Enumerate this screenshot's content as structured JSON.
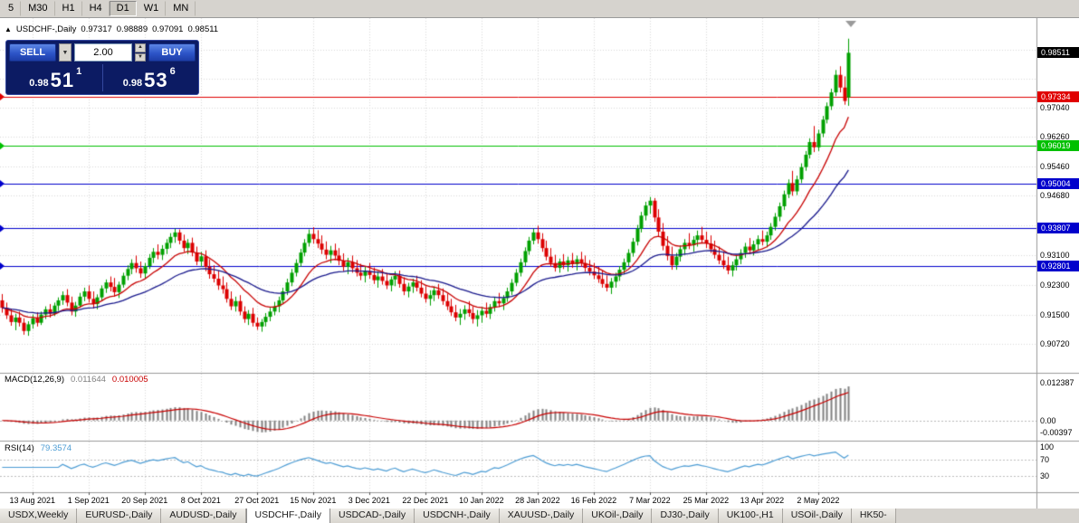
{
  "toolbar": {
    "periods": [
      "5",
      "M30",
      "H1",
      "H4",
      "D1",
      "W1",
      "MN"
    ],
    "active_period": "D1"
  },
  "chart": {
    "collapse_icon": "▲",
    "symbol_title": "USDCHF-,Daily",
    "open": "0.97317",
    "high": "0.98889",
    "low": "0.97091",
    "close": "0.98511"
  },
  "one_click": {
    "sell_label": "SELL",
    "buy_label": "BUY",
    "volume": "2.00",
    "bid": {
      "small": "0.98",
      "big": "51",
      "sup": "1"
    },
    "ask": {
      "small": "0.98",
      "big": "53",
      "sup": "6"
    }
  },
  "price_axis": {
    "current": {
      "label": "0.98511",
      "value": 0.98511,
      "color": "#000000"
    },
    "lines": [
      {
        "label": "0.97334",
        "value": 0.97334,
        "color": "#E00000"
      },
      {
        "label": "0.96019",
        "value": 0.96019,
        "color": "#00C000"
      },
      {
        "label": "0.95004",
        "value": 0.95004,
        "color": "#0000CC"
      },
      {
        "label": "0.93807",
        "value": 0.93807,
        "color": "#0000CC"
      },
      {
        "label": "0.92801",
        "value": 0.92801,
        "color": "#0000CC"
      }
    ],
    "ticks": [
      {
        "label": "0.97040",
        "value": 0.9704
      },
      {
        "label": "0.96260",
        "value": 0.9626
      },
      {
        "label": "0.95460",
        "value": 0.9546
      },
      {
        "label": "0.94680",
        "value": 0.9468
      },
      {
        "label": "0.93100",
        "value": 0.931
      },
      {
        "label": "0.92300",
        "value": 0.923
      },
      {
        "label": "0.91500",
        "value": 0.915
      },
      {
        "label": "0.90720",
        "value": 0.9072
      }
    ]
  },
  "macd_panel": {
    "title": "MACD(12,26,9)",
    "value_main": "0.011644",
    "value_signal": "0.010005",
    "axis": [
      {
        "label": "0.012387",
        "value": 0.012387
      },
      {
        "label": "0.00",
        "value": 0
      },
      {
        "label": "-0.00397",
        "value": -0.00397
      }
    ]
  },
  "rsi_panel": {
    "title": "RSI(14)",
    "value": "79.3574",
    "axis": [
      {
        "label": "100",
        "value": 100
      },
      {
        "label": "70",
        "value": 70
      },
      {
        "label": "30",
        "value": 30
      }
    ]
  },
  "date_axis": [
    "13 Aug 2021",
    "1 Sep 2021",
    "20 Sep 2021",
    "8 Oct 2021",
    "27 Oct 2021",
    "15 Nov 2021",
    "3 Dec 2021",
    "22 Dec 2021",
    "10 Jan 2022",
    "28 Jan 2022",
    "16 Feb 2022",
    "7 Mar 2022",
    "25 Mar 2022",
    "13 Apr 2022",
    "2 May 2022"
  ],
  "tabs": {
    "items": [
      "USDX,Weekly",
      "EURUSD-,Daily",
      "AUDUSD-,Daily",
      "USDCHF-,Daily",
      "USDCAD-,Daily",
      "USDCNH-,Daily",
      "XAUUSD-,Daily",
      "UKOil-,Daily",
      "DJ30-,Daily",
      "UK100-,H1",
      "USOil-,Daily",
      "HK50-"
    ],
    "active": "USDCHF-,Daily"
  },
  "chart_data": {
    "type": "candlestick",
    "symbol": "USDCHF",
    "timeframe": "Daily",
    "price_range": [
      0.8994,
      0.9944
    ],
    "colors": {
      "bull": "#00A000",
      "bear": "#DC0000",
      "grid": "#DCDCDC"
    },
    "moving_averages": [
      {
        "period": 13,
        "color": "#C80000"
      },
      {
        "period": 34,
        "color": "#18188C"
      }
    ],
    "macd": {
      "fast": 12,
      "slow": 26,
      "signal": 9,
      "histogram_color": "#808080",
      "signal_color": "#C80000"
    },
    "rsi": {
      "period": 14,
      "color": "#4C9CD4",
      "levels": [
        70,
        30
      ]
    },
    "tick_indices": [
      7,
      20,
      33,
      46,
      59,
      72,
      85,
      98,
      111,
      124,
      137,
      150,
      163,
      176,
      189
    ],
    "ohlc": [
      [
        0.9188,
        0.9205,
        0.9155,
        0.9168
      ],
      [
        0.9168,
        0.9182,
        0.9138,
        0.9148
      ],
      [
        0.9148,
        0.9166,
        0.912,
        0.913
      ],
      [
        0.913,
        0.9152,
        0.9108,
        0.9142
      ],
      [
        0.9142,
        0.9158,
        0.9118,
        0.9128
      ],
      [
        0.9128,
        0.914,
        0.9096,
        0.9106
      ],
      [
        0.9106,
        0.9132,
        0.9093,
        0.9124
      ],
      [
        0.9124,
        0.915,
        0.9112,
        0.914
      ],
      [
        0.914,
        0.9156,
        0.9118,
        0.9128
      ],
      [
        0.9128,
        0.9158,
        0.9122,
        0.915
      ],
      [
        0.915,
        0.9172,
        0.9138,
        0.9164
      ],
      [
        0.9164,
        0.9178,
        0.9142,
        0.9152
      ],
      [
        0.9152,
        0.9182,
        0.9146,
        0.9174
      ],
      [
        0.9174,
        0.9196,
        0.916,
        0.9188
      ],
      [
        0.9188,
        0.9212,
        0.9176,
        0.9202
      ],
      [
        0.9202,
        0.9218,
        0.9172,
        0.9182
      ],
      [
        0.9182,
        0.9198,
        0.9148,
        0.9158
      ],
      [
        0.9158,
        0.9184,
        0.9144,
        0.9174
      ],
      [
        0.9174,
        0.9208,
        0.9168,
        0.9198
      ],
      [
        0.9198,
        0.9222,
        0.9186,
        0.9212
      ],
      [
        0.9212,
        0.9228,
        0.9182,
        0.9192
      ],
      [
        0.9192,
        0.9212,
        0.9166,
        0.9178
      ],
      [
        0.9178,
        0.9204,
        0.9164,
        0.9196
      ],
      [
        0.9196,
        0.9228,
        0.9188,
        0.922
      ],
      [
        0.922,
        0.9244,
        0.9208,
        0.9236
      ],
      [
        0.9236,
        0.9252,
        0.9212,
        0.9224
      ],
      [
        0.9224,
        0.9248,
        0.9198,
        0.921
      ],
      [
        0.921,
        0.9238,
        0.9194,
        0.923
      ],
      [
        0.923,
        0.9262,
        0.9222,
        0.9254
      ],
      [
        0.9254,
        0.9282,
        0.9242,
        0.9272
      ],
      [
        0.9272,
        0.9298,
        0.9258,
        0.9288
      ],
      [
        0.9288,
        0.9308,
        0.9262,
        0.9274
      ],
      [
        0.9274,
        0.9292,
        0.9248,
        0.926
      ],
      [
        0.926,
        0.9288,
        0.9248,
        0.928
      ],
      [
        0.928,
        0.9312,
        0.9272,
        0.9302
      ],
      [
        0.9302,
        0.9328,
        0.9288,
        0.9318
      ],
      [
        0.9318,
        0.9338,
        0.9298,
        0.931
      ],
      [
        0.931,
        0.9336,
        0.9296,
        0.9326
      ],
      [
        0.9326,
        0.9352,
        0.9312,
        0.9342
      ],
      [
        0.9342,
        0.9368,
        0.9328,
        0.9358
      ],
      [
        0.9358,
        0.938,
        0.9342,
        0.937
      ],
      [
        0.937,
        0.9378,
        0.9338,
        0.9348
      ],
      [
        0.9348,
        0.9364,
        0.9318,
        0.9328
      ],
      [
        0.9328,
        0.9352,
        0.9312,
        0.9342
      ],
      [
        0.9342,
        0.9356,
        0.9306,
        0.9316
      ],
      [
        0.9316,
        0.9332,
        0.9282,
        0.9292
      ],
      [
        0.9292,
        0.9318,
        0.9278,
        0.9306
      ],
      [
        0.9306,
        0.9322,
        0.9266,
        0.9278
      ],
      [
        0.9278,
        0.9298,
        0.9246,
        0.9258
      ],
      [
        0.9258,
        0.9282,
        0.9236,
        0.9246
      ],
      [
        0.9246,
        0.9268,
        0.9216,
        0.9228
      ],
      [
        0.9228,
        0.9252,
        0.9206,
        0.9218
      ],
      [
        0.9218,
        0.9236,
        0.9182,
        0.9192
      ],
      [
        0.9192,
        0.9212,
        0.9162,
        0.9172
      ],
      [
        0.9172,
        0.9198,
        0.9158,
        0.9186
      ],
      [
        0.9186,
        0.9202,
        0.9148,
        0.9158
      ],
      [
        0.9158,
        0.9172,
        0.9128,
        0.9138
      ],
      [
        0.9138,
        0.9162,
        0.9122,
        0.9152
      ],
      [
        0.9152,
        0.9168,
        0.9118,
        0.9128
      ],
      [
        0.9128,
        0.9142,
        0.9109,
        0.9118
      ],
      [
        0.9118,
        0.9138,
        0.9104,
        0.913
      ],
      [
        0.913,
        0.9154,
        0.9118,
        0.9144
      ],
      [
        0.9144,
        0.9168,
        0.9132,
        0.9158
      ],
      [
        0.9158,
        0.9184,
        0.9148,
        0.9172
      ],
      [
        0.9172,
        0.9198,
        0.9156,
        0.9188
      ],
      [
        0.9188,
        0.9222,
        0.918,
        0.9212
      ],
      [
        0.9212,
        0.9246,
        0.9202,
        0.9236
      ],
      [
        0.9236,
        0.9272,
        0.9226,
        0.9262
      ],
      [
        0.9262,
        0.9298,
        0.9252,
        0.9288
      ],
      [
        0.9288,
        0.9326,
        0.9278,
        0.9316
      ],
      [
        0.9316,
        0.9352,
        0.9306,
        0.9342
      ],
      [
        0.9342,
        0.9378,
        0.9332,
        0.9366
      ],
      [
        0.9366,
        0.9384,
        0.934,
        0.9352
      ],
      [
        0.9352,
        0.9376,
        0.9328,
        0.934
      ],
      [
        0.934,
        0.9362,
        0.9312,
        0.9324
      ],
      [
        0.9324,
        0.9346,
        0.9298,
        0.931
      ],
      [
        0.931,
        0.9334,
        0.9288,
        0.9322
      ],
      [
        0.9322,
        0.934,
        0.9296,
        0.9308
      ],
      [
        0.9308,
        0.9328,
        0.9282,
        0.9294
      ],
      [
        0.9294,
        0.9314,
        0.9266,
        0.9278
      ],
      [
        0.9278,
        0.9302,
        0.9258,
        0.929
      ],
      [
        0.929,
        0.9308,
        0.9262,
        0.9274
      ],
      [
        0.9274,
        0.9296,
        0.9252,
        0.9262
      ],
      [
        0.9262,
        0.9286,
        0.9242,
        0.9254
      ],
      [
        0.9254,
        0.9278,
        0.9236,
        0.9266
      ],
      [
        0.9266,
        0.9288,
        0.9246,
        0.9256
      ],
      [
        0.9256,
        0.9276,
        0.9232,
        0.9242
      ],
      [
        0.9242,
        0.9266,
        0.9222,
        0.9252
      ],
      [
        0.9252,
        0.9272,
        0.923,
        0.924
      ],
      [
        0.924,
        0.9262,
        0.9218,
        0.9228
      ],
      [
        0.9228,
        0.9252,
        0.9212,
        0.9244
      ],
      [
        0.9244,
        0.9266,
        0.9226,
        0.9254
      ],
      [
        0.9254,
        0.9268,
        0.9222,
        0.9232
      ],
      [
        0.9232,
        0.925,
        0.9202,
        0.9212
      ],
      [
        0.9212,
        0.9235,
        0.9196,
        0.9225
      ],
      [
        0.9225,
        0.9246,
        0.9208,
        0.9236
      ],
      [
        0.9236,
        0.9254,
        0.9212,
        0.9222
      ],
      [
        0.9222,
        0.9242,
        0.9196,
        0.9206
      ],
      [
        0.9206,
        0.9226,
        0.9182,
        0.9192
      ],
      [
        0.9192,
        0.9215,
        0.9174,
        0.9202
      ],
      [
        0.9202,
        0.9225,
        0.9186,
        0.9215
      ],
      [
        0.9215,
        0.9232,
        0.9192,
        0.9202
      ],
      [
        0.9202,
        0.922,
        0.9176,
        0.9186
      ],
      [
        0.9186,
        0.9206,
        0.9162,
        0.9172
      ],
      [
        0.9172,
        0.9192,
        0.9146,
        0.9156
      ],
      [
        0.9156,
        0.9176,
        0.9132,
        0.9142
      ],
      [
        0.9142,
        0.9165,
        0.9122,
        0.9152
      ],
      [
        0.9152,
        0.9175,
        0.9136,
        0.9164
      ],
      [
        0.9164,
        0.9186,
        0.9144,
        0.9154
      ],
      [
        0.9154,
        0.9172,
        0.9126,
        0.9138
      ],
      [
        0.9138,
        0.9162,
        0.9118,
        0.9148
      ],
      [
        0.9148,
        0.917,
        0.9128,
        0.916
      ],
      [
        0.916,
        0.9182,
        0.9142,
        0.9152
      ],
      [
        0.9152,
        0.9178,
        0.9138,
        0.917
      ],
      [
        0.917,
        0.9196,
        0.9158,
        0.9186
      ],
      [
        0.9186,
        0.9208,
        0.917,
        0.918
      ],
      [
        0.918,
        0.9202,
        0.9162,
        0.9194
      ],
      [
        0.9194,
        0.9222,
        0.9184,
        0.9212
      ],
      [
        0.9212,
        0.9245,
        0.9202,
        0.9235
      ],
      [
        0.9235,
        0.9272,
        0.9226,
        0.9262
      ],
      [
        0.9262,
        0.93,
        0.9252,
        0.929
      ],
      [
        0.929,
        0.933,
        0.928,
        0.932
      ],
      [
        0.932,
        0.9358,
        0.931,
        0.9348
      ],
      [
        0.9348,
        0.938,
        0.9338,
        0.937
      ],
      [
        0.937,
        0.9388,
        0.934,
        0.9352
      ],
      [
        0.9352,
        0.9368,
        0.9318,
        0.9328
      ],
      [
        0.9328,
        0.9348,
        0.9295,
        0.9305
      ],
      [
        0.9305,
        0.9328,
        0.9278,
        0.9288
      ],
      [
        0.9288,
        0.931,
        0.9265,
        0.9275
      ],
      [
        0.9275,
        0.93,
        0.9262,
        0.9292
      ],
      [
        0.9292,
        0.9312,
        0.9272,
        0.9282
      ],
      [
        0.9282,
        0.9305,
        0.9265,
        0.9295
      ],
      [
        0.9295,
        0.9315,
        0.9275,
        0.9285
      ],
      [
        0.9285,
        0.9308,
        0.9268,
        0.9298
      ],
      [
        0.9298,
        0.9318,
        0.9278,
        0.9288
      ],
      [
        0.9288,
        0.9308,
        0.9265,
        0.9275
      ],
      [
        0.9275,
        0.9296,
        0.9255,
        0.9265
      ],
      [
        0.9265,
        0.9288,
        0.9245,
        0.9255
      ],
      [
        0.9255,
        0.9278,
        0.9235,
        0.9245
      ],
      [
        0.9245,
        0.9268,
        0.9222,
        0.9232
      ],
      [
        0.9232,
        0.9255,
        0.9212,
        0.9222
      ],
      [
        0.9222,
        0.9248,
        0.9205,
        0.9238
      ],
      [
        0.9238,
        0.9262,
        0.9222,
        0.9252
      ],
      [
        0.9252,
        0.928,
        0.924,
        0.927
      ],
      [
        0.927,
        0.93,
        0.9258,
        0.929
      ],
      [
        0.929,
        0.9325,
        0.928,
        0.9315
      ],
      [
        0.9315,
        0.9355,
        0.9305,
        0.9345
      ],
      [
        0.9345,
        0.939,
        0.9335,
        0.938
      ],
      [
        0.938,
        0.9425,
        0.937,
        0.9415
      ],
      [
        0.9415,
        0.9452,
        0.9402,
        0.9442
      ],
      [
        0.9442,
        0.9465,
        0.942,
        0.9455
      ],
      [
        0.9455,
        0.9462,
        0.9398,
        0.941
      ],
      [
        0.941,
        0.9432,
        0.936,
        0.9372
      ],
      [
        0.9372,
        0.9395,
        0.9322,
        0.9334
      ],
      [
        0.9334,
        0.936,
        0.9295,
        0.9307
      ],
      [
        0.9307,
        0.9332,
        0.927,
        0.9282
      ],
      [
        0.9282,
        0.9315,
        0.927,
        0.9305
      ],
      [
        0.9305,
        0.9335,
        0.9292,
        0.9325
      ],
      [
        0.9325,
        0.9352,
        0.931,
        0.9342
      ],
      [
        0.9342,
        0.9368,
        0.9325,
        0.9336
      ],
      [
        0.9336,
        0.936,
        0.9318,
        0.935
      ],
      [
        0.935,
        0.9375,
        0.9332,
        0.9362
      ],
      [
        0.9362,
        0.9385,
        0.934,
        0.935
      ],
      [
        0.935,
        0.9372,
        0.9328,
        0.934
      ],
      [
        0.934,
        0.9362,
        0.9315,
        0.9325
      ],
      [
        0.9325,
        0.9348,
        0.93,
        0.931
      ],
      [
        0.931,
        0.9332,
        0.9285,
        0.9295
      ],
      [
        0.9295,
        0.9318,
        0.9272,
        0.9282
      ],
      [
        0.9282,
        0.9305,
        0.9258,
        0.9268
      ],
      [
        0.9268,
        0.9292,
        0.9252,
        0.9282
      ],
      [
        0.9282,
        0.9308,
        0.9268,
        0.9298
      ],
      [
        0.9298,
        0.9325,
        0.9285,
        0.9315
      ],
      [
        0.9315,
        0.9342,
        0.9302,
        0.9332
      ],
      [
        0.9332,
        0.9355,
        0.9312,
        0.9322
      ],
      [
        0.9322,
        0.9348,
        0.9308,
        0.9338
      ],
      [
        0.9338,
        0.9362,
        0.9322,
        0.9352
      ],
      [
        0.9352,
        0.9375,
        0.9335,
        0.9345
      ],
      [
        0.9345,
        0.9372,
        0.933,
        0.9362
      ],
      [
        0.9362,
        0.9395,
        0.935,
        0.9385
      ],
      [
        0.9385,
        0.9422,
        0.9375,
        0.9412
      ],
      [
        0.9412,
        0.945,
        0.94,
        0.944
      ],
      [
        0.944,
        0.9482,
        0.943,
        0.9472
      ],
      [
        0.9472,
        0.9512,
        0.9462,
        0.9502
      ],
      [
        0.9502,
        0.9535,
        0.9468,
        0.948
      ],
      [
        0.948,
        0.9522,
        0.947,
        0.9512
      ],
      [
        0.9512,
        0.9555,
        0.9502,
        0.9545
      ],
      [
        0.9545,
        0.9588,
        0.9535,
        0.9578
      ],
      [
        0.9578,
        0.9622,
        0.9568,
        0.9612
      ],
      [
        0.9612,
        0.9655,
        0.9585,
        0.9598
      ],
      [
        0.9598,
        0.9645,
        0.9588,
        0.9635
      ],
      [
        0.9635,
        0.9682,
        0.9625,
        0.9672
      ],
      [
        0.9672,
        0.9718,
        0.9662,
        0.9708
      ],
      [
        0.9708,
        0.9755,
        0.9698,
        0.9745
      ],
      [
        0.9745,
        0.9805,
        0.9735,
        0.9792
      ],
      [
        0.9792,
        0.9815,
        0.9745,
        0.9758
      ],
      [
        0.9758,
        0.9788,
        0.9712,
        0.9722
      ],
      [
        0.97317,
        0.98889,
        0.97091,
        0.98511
      ]
    ]
  }
}
